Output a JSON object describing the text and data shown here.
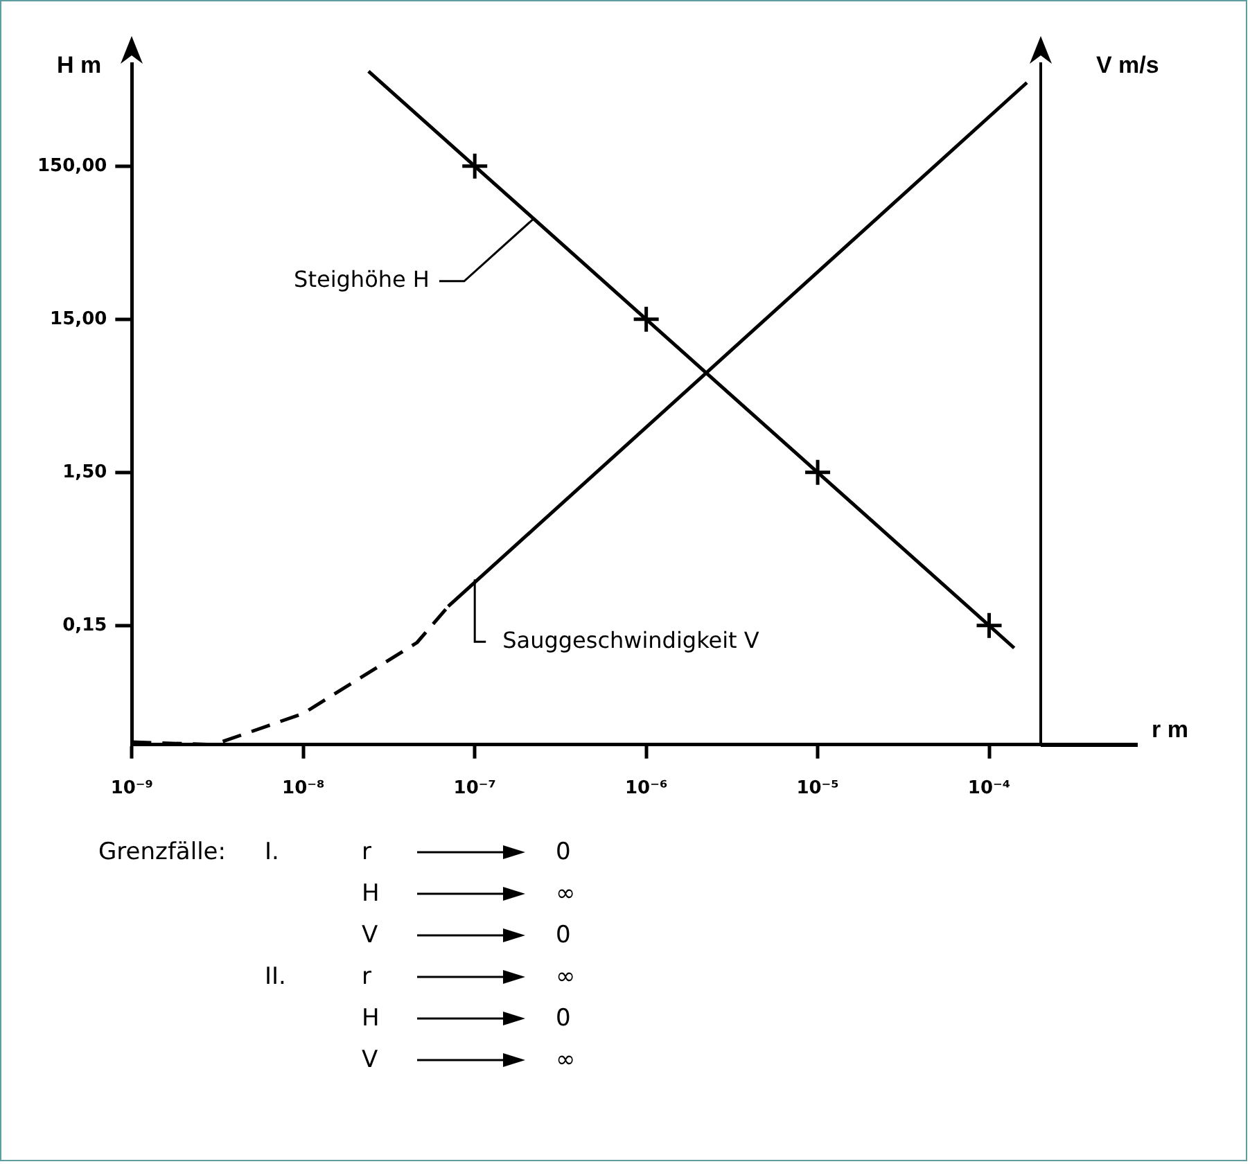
{
  "chart_data": {
    "type": "line",
    "xlabel": "r m",
    "ylabel": "H m",
    "y2label": "V m/s",
    "log": "xy",
    "grid": false,
    "legend": false,
    "xlim": [
      1e-09,
      0.0002
    ],
    "ylim": [
      0.025,
      700
    ],
    "xticks": [
      {
        "value": 1e-09,
        "label": "10⁻⁹"
      },
      {
        "value": 1e-08,
        "label": "10⁻⁸"
      },
      {
        "value": 1e-07,
        "label": "10⁻⁷"
      },
      {
        "value": 1e-06,
        "label": "10⁻⁶"
      },
      {
        "value": 1e-05,
        "label": "10⁻⁵"
      },
      {
        "value": 0.0001,
        "label": "10⁻⁴"
      }
    ],
    "yticks": [
      {
        "value": 0.15,
        "label": "0,15"
      },
      {
        "value": 1.5,
        "label": "1,50"
      },
      {
        "value": 15,
        "label": "15,00"
      },
      {
        "value": 150,
        "label": "150,00"
      }
    ],
    "series": [
      {
        "color": "#000000",
        "marker": "none",
        "line_style": "solid",
        "x": [
          2.4e-08,
          1e-07,
          1e-06,
          1e-05,
          0.0001,
          0.00014
        ],
        "values": [
          625,
          150,
          15,
          1.5,
          0.15,
          0.107
        ]
      },
      {
        "type": "scatter",
        "color": "#000000",
        "marker": "cross",
        "x": [
          1e-07,
          1e-06,
          1e-05,
          0.0001
        ],
        "values": [
          150,
          15,
          1.5,
          0.15
        ]
      },
      {
        "color": "#000000",
        "marker": "none",
        "line_style": "dashed",
        "x": [
          1e-09,
          3e-09,
          1e-08,
          4.6e-08,
          7e-08
        ],
        "values": [
          0.026,
          0.025,
          0.04,
          0.116,
          0.2
        ]
      },
      {
        "color": "#000000",
        "marker": "none",
        "line_style": "solid",
        "x": [
          7e-08,
          0.000166
        ],
        "values": [
          0.2,
          527
        ]
      }
    ],
    "annotations": [
      {
        "text": "Steighöhe H",
        "x": 2.2e-07,
        "y": 68
      },
      {
        "text": "Sauggeschwindigkeit V",
        "x": 1e-07,
        "y": 0.3
      },
      "Grenzfälle:",
      "I.",
      "r",
      "0",
      "H",
      "∞",
      "V",
      "0",
      "II.",
      "r",
      "∞",
      "H",
      "0",
      "V",
      "∞"
    ]
  }
}
